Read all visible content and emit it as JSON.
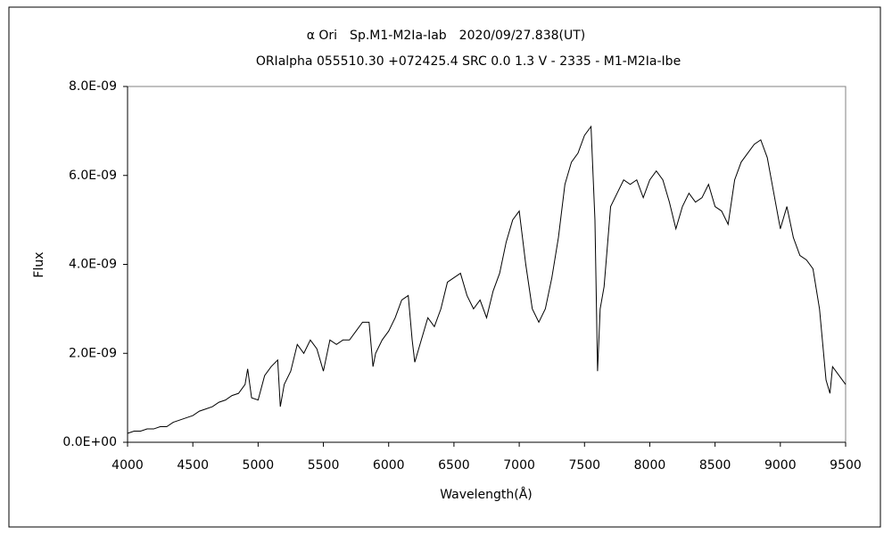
{
  "chart_data": {
    "type": "line",
    "title": "α Ori　Sp.M1-M2Ia-Iab　2020/09/27.838(UT)",
    "subtitle": "ORIalpha 055510.30 +072425.4 SRC 0.0 1.3 V - 2335 - M1-M2Ia-Ibe",
    "x_label": "Wavelength(Å)",
    "y_label": "Flux",
    "xlim": [
      4000,
      9500
    ],
    "xticks": [
      4000,
      4500,
      5000,
      5500,
      6000,
      6500,
      7000,
      7500,
      8000,
      8500,
      9000,
      9500
    ],
    "ylim": [
      0,
      8e-09
    ],
    "yticks": [
      {
        "value": 0,
        "label": "0.0E+00"
      },
      {
        "value": 2e-09,
        "label": "2.0E-09"
      },
      {
        "value": 4e-09,
        "label": "4.0E-09"
      },
      {
        "value": 6e-09,
        "label": "6.0E-09"
      },
      {
        "value": 8e-09,
        "label": "8.0E-09"
      }
    ],
    "series": [
      {
        "color": "#000000",
        "x": [
          4000,
          4050,
          4100,
          4150,
          4200,
          4250,
          4300,
          4350,
          4400,
          4450,
          4500,
          4550,
          4600,
          4650,
          4700,
          4750,
          4800,
          4850,
          4900,
          4920,
          4950,
          5000,
          5050,
          5100,
          5150,
          5170,
          5200,
          5250,
          5300,
          5350,
          5400,
          5450,
          5500,
          5550,
          5600,
          5650,
          5700,
          5750,
          5800,
          5850,
          5880,
          5900,
          5950,
          6000,
          6050,
          6100,
          6150,
          6180,
          6200,
          6250,
          6300,
          6350,
          6400,
          6450,
          6500,
          6550,
          6600,
          6650,
          6700,
          6750,
          6800,
          6850,
          6900,
          6950,
          7000,
          7050,
          7100,
          7150,
          7200,
          7250,
          7300,
          7350,
          7400,
          7450,
          7500,
          7550,
          7580,
          7600,
          7620,
          7650,
          7700,
          7750,
          7800,
          7850,
          7900,
          7950,
          8000,
          8050,
          8100,
          8150,
          8200,
          8250,
          8300,
          8350,
          8400,
          8450,
          8500,
          8550,
          8600,
          8650,
          8700,
          8750,
          8800,
          8850,
          8900,
          8950,
          9000,
          9050,
          9100,
          9150,
          9200,
          9250,
          9300,
          9350,
          9380,
          9400,
          9450,
          9500
        ],
        "values": [
          2e-10,
          2.5e-10,
          2.5e-10,
          3e-10,
          3e-10,
          3.5e-10,
          3.5e-10,
          4.5e-10,
          5e-10,
          5.5e-10,
          6e-10,
          7e-10,
          7.5e-10,
          8e-10,
          9e-10,
          9.5e-10,
          1.05e-09,
          1.1e-09,
          1.3e-09,
          1.65e-09,
          1e-09,
          9.5e-10,
          1.5e-09,
          1.7e-09,
          1.85e-09,
          8e-10,
          1.3e-09,
          1.6e-09,
          2.2e-09,
          2e-09,
          2.3e-09,
          2.1e-09,
          1.6e-09,
          2.3e-09,
          2.2e-09,
          2.3e-09,
          2.3e-09,
          2.5e-09,
          2.7e-09,
          2.7e-09,
          1.7e-09,
          2e-09,
          2.3e-09,
          2.5e-09,
          2.8e-09,
          3.2e-09,
          3.3e-09,
          2.3e-09,
          1.8e-09,
          2.3e-09,
          2.8e-09,
          2.6e-09,
          3e-09,
          3.6e-09,
          3.7e-09,
          3.8e-09,
          3.3e-09,
          3e-09,
          3.2e-09,
          2.8e-09,
          3.4e-09,
          3.8e-09,
          4.5e-09,
          5e-09,
          5.2e-09,
          4e-09,
          3e-09,
          2.7e-09,
          3e-09,
          3.7e-09,
          4.6e-09,
          5.8e-09,
          6.3e-09,
          6.5e-09,
          6.9e-09,
          7.1e-09,
          5e-09,
          1.6e-09,
          3e-09,
          3.5e-09,
          5.3e-09,
          5.6e-09,
          5.9e-09,
          5.8e-09,
          5.9e-09,
          5.5e-09,
          5.9e-09,
          6.1e-09,
          5.9e-09,
          5.4e-09,
          4.8e-09,
          5.3e-09,
          5.6e-09,
          5.4e-09,
          5.5e-09,
          5.8e-09,
          5.3e-09,
          5.2e-09,
          4.9e-09,
          5.9e-09,
          6.3e-09,
          6.5e-09,
          6.7e-09,
          6.8e-09,
          6.4e-09,
          5.6e-09,
          4.8e-09,
          5.3e-09,
          4.6e-09,
          4.2e-09,
          4.1e-09,
          3.9e-09,
          3e-09,
          1.4e-09,
          1.1e-09,
          1.7e-09,
          1.5e-09,
          1.3e-09
        ]
      }
    ]
  }
}
